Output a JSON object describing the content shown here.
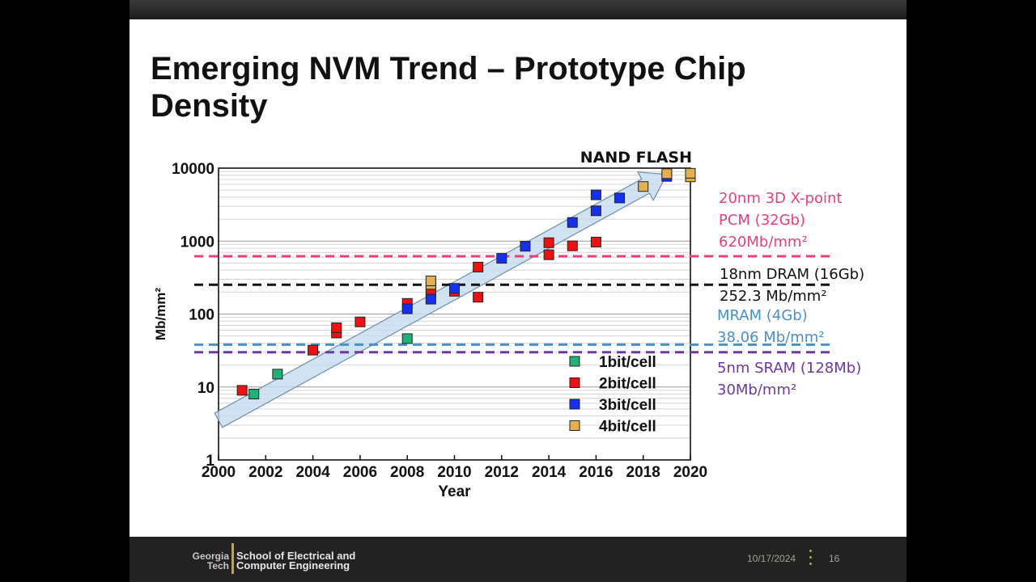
{
  "slide": {
    "title_line1": "Emerging NVM Trend – Prototype Chip",
    "title_line2": "Density"
  },
  "chart_data": {
    "type": "scatter",
    "title": "NAND FLASH",
    "xlabel": "Year",
    "ylabel": "Mb/mm²",
    "xlim": [
      2000,
      2020
    ],
    "ylim": [
      1,
      10000
    ],
    "yscale": "log",
    "grid": true,
    "x_ticks": [
      "2000",
      "2002",
      "2004",
      "2006",
      "2008",
      "2010",
      "2012",
      "2014",
      "2016",
      "2018",
      "2020"
    ],
    "y_ticks": [
      "1",
      "10",
      "100",
      "1000",
      "10000"
    ],
    "legend_position": "bottom-right",
    "series": [
      {
        "name": "1bit/cell",
        "color": "#22b07a",
        "points": [
          [
            2001.5,
            8
          ],
          [
            2002.5,
            15
          ],
          [
            2008,
            46
          ]
        ]
      },
      {
        "name": "2bit/cell",
        "color": "#ee1111",
        "points": [
          [
            2001,
            9
          ],
          [
            2004,
            32
          ],
          [
            2005,
            55
          ],
          [
            2005,
            65
          ],
          [
            2006,
            78
          ],
          [
            2008,
            140
          ],
          [
            2009,
            200
          ],
          [
            2010,
            205
          ],
          [
            2011,
            170
          ],
          [
            2011,
            440
          ],
          [
            2014,
            650
          ],
          [
            2014,
            950
          ],
          [
            2015,
            860
          ],
          [
            2016,
            970
          ]
        ]
      },
      {
        "name": "3bit/cell",
        "color": "#1530ee",
        "points": [
          [
            2008,
            118
          ],
          [
            2009,
            160
          ],
          [
            2010,
            225
          ],
          [
            2012,
            580
          ],
          [
            2013,
            850
          ],
          [
            2015,
            1800
          ],
          [
            2016,
            2600
          ],
          [
            2016,
            4300
          ],
          [
            2017,
            3900
          ],
          [
            2019,
            7700
          ]
        ]
      },
      {
        "name": "4bit/cell",
        "color": "#e2b050",
        "points": [
          [
            2009,
            255
          ],
          [
            2009,
            285
          ],
          [
            2018,
            5600
          ],
          [
            2019,
            8400
          ],
          [
            2020,
            7600
          ],
          [
            2020,
            8500
          ]
        ]
      }
    ],
    "trend_arrow": {
      "from": [
        2000,
        3.5
      ],
      "to": [
        2019,
        8200
      ]
    },
    "reference_lines": [
      {
        "value": 620,
        "color": "#e8407a",
        "lines": [
          "20nm 3D X-point",
          "PCM (32Gb)",
          "620Mb/mm²"
        ]
      },
      {
        "value": 252.3,
        "color": "#111111",
        "lines": [
          "18nm DRAM (16Gb)",
          "252.3 Mb/mm²"
        ]
      },
      {
        "value": 38.06,
        "color": "#4a90c8",
        "lines": [
          "MRAM (4Gb)",
          "38.06 Mb/mm²"
        ]
      },
      {
        "value": 30,
        "color": "#6a3aa0",
        "lines": [
          "5nm SRAM (128Mb)",
          "30Mb/mm²"
        ]
      }
    ]
  },
  "footer": {
    "logo_line1": "Georgia",
    "logo_line2": "Tech",
    "school_line1": "School of Electrical and",
    "school_line2": "Computer Engineering",
    "date": "10/17/2024",
    "page": "16",
    "accent": "#b3a369"
  }
}
